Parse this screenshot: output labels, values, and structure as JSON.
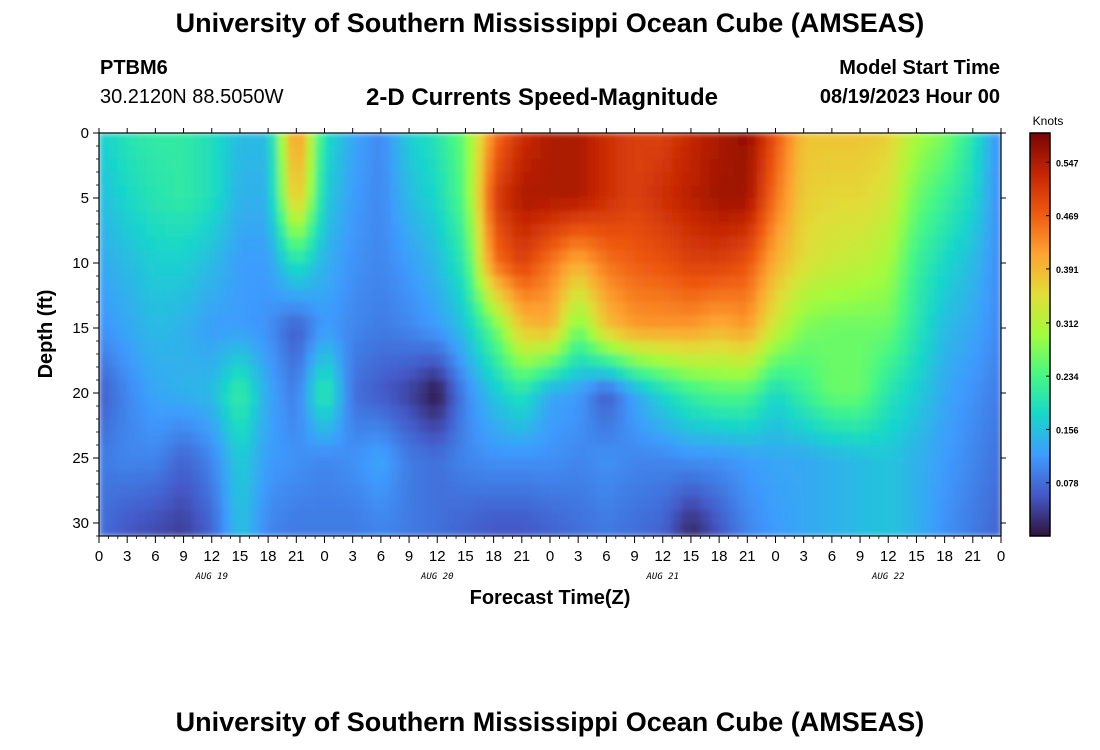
{
  "header": {
    "title": "University of Southern Mississippi Ocean Cube (AMSEAS)",
    "station_id": "PTBM6",
    "station_location": "30.2120N  88.5050W",
    "plot_title": "2-D Currents Speed-Magnitude",
    "model_start_label": "Model Start Time",
    "model_start_value": "08/19/2023 Hour 00"
  },
  "footer": {
    "title": "University of Southern Mississippi Ocean Cube (AMSEAS)"
  },
  "chart_data": {
    "type": "heatmap",
    "title": "2-D Currents Speed-Magnitude",
    "xlabel": "Forecast Time(Z)",
    "ylabel": "Depth (ft)",
    "x_tick_labels": [
      "0",
      "3",
      "6",
      "9",
      "12",
      "15",
      "18",
      "21",
      "0",
      "3",
      "6",
      "9",
      "12",
      "15",
      "18",
      "21",
      "0",
      "3",
      "6",
      "9",
      "12",
      "15",
      "18",
      "21",
      "0",
      "3",
      "6",
      "9",
      "12",
      "15",
      "18",
      "21",
      "0"
    ],
    "date_labels": [
      "AUG 19",
      "AUG 20",
      "AUG 21",
      "AUG 22"
    ],
    "x_hours_range": [
      0,
      96
    ],
    "y_ticks": [
      0,
      5,
      10,
      15,
      20,
      25,
      30
    ],
    "ylim": [
      0,
      31
    ],
    "y_inverted": true,
    "colorbar": {
      "unit": "Knots",
      "min": 0,
      "max": 0.59,
      "tick_values": [
        0.547,
        0.469,
        0.391,
        0.312,
        0.234,
        0.156,
        0.078
      ],
      "tick_labels": [
        "0.547",
        "0.469",
        "0.391",
        "0.312",
        "0.234",
        "0.156",
        "0.078"
      ],
      "colormap": [
        "#30123b",
        "#4458c7",
        "#3e9bfe",
        "#18d6cb",
        "#46f884",
        "#a2fc3c",
        "#e1dd37",
        "#fea331",
        "#ef5911",
        "#c42503",
        "#7a0403"
      ]
    },
    "depth_levels_ft": [
      0,
      5,
      10,
      15,
      20,
      25,
      30
    ],
    "hours": [
      0,
      3,
      6,
      9,
      12,
      15,
      18,
      21,
      24,
      27,
      30,
      33,
      36,
      39,
      42,
      45,
      48,
      51,
      54,
      57,
      60,
      63,
      66,
      69,
      72,
      75,
      78,
      81,
      84,
      87,
      90,
      93,
      96
    ],
    "speed_knots": [
      [
        0.17,
        0.2,
        0.21,
        0.21,
        0.19,
        0.15,
        0.15,
        0.45,
        0.19,
        0.13,
        0.1,
        0.17,
        0.2,
        0.26,
        0.45,
        0.52,
        0.55,
        0.55,
        0.52,
        0.5,
        0.5,
        0.53,
        0.55,
        0.57,
        0.48,
        0.38,
        0.38,
        0.38,
        0.37,
        0.3,
        0.27,
        0.2,
        0.1
      ],
      [
        0.15,
        0.18,
        0.2,
        0.21,
        0.19,
        0.14,
        0.14,
        0.4,
        0.17,
        0.12,
        0.1,
        0.15,
        0.18,
        0.25,
        0.5,
        0.55,
        0.55,
        0.55,
        0.52,
        0.5,
        0.52,
        0.54,
        0.56,
        0.56,
        0.45,
        0.37,
        0.36,
        0.36,
        0.34,
        0.26,
        0.22,
        0.18,
        0.1
      ],
      [
        0.13,
        0.15,
        0.17,
        0.17,
        0.15,
        0.12,
        0.12,
        0.2,
        0.14,
        0.11,
        0.1,
        0.12,
        0.15,
        0.21,
        0.45,
        0.5,
        0.45,
        0.4,
        0.45,
        0.47,
        0.48,
        0.5,
        0.5,
        0.48,
        0.4,
        0.35,
        0.33,
        0.32,
        0.3,
        0.22,
        0.18,
        0.15,
        0.1
      ],
      [
        0.11,
        0.13,
        0.15,
        0.14,
        0.12,
        0.12,
        0.11,
        0.06,
        0.12,
        0.1,
        0.09,
        0.1,
        0.12,
        0.16,
        0.25,
        0.38,
        0.4,
        0.26,
        0.38,
        0.42,
        0.42,
        0.42,
        0.4,
        0.42,
        0.33,
        0.27,
        0.26,
        0.26,
        0.26,
        0.2,
        0.15,
        0.13,
        0.1
      ],
      [
        0.06,
        0.1,
        0.13,
        0.14,
        0.15,
        0.22,
        0.13,
        0.09,
        0.22,
        0.08,
        0.06,
        0.04,
        0.0,
        0.1,
        0.16,
        0.2,
        0.13,
        0.12,
        0.06,
        0.13,
        0.18,
        0.22,
        0.24,
        0.24,
        0.18,
        0.22,
        0.26,
        0.26,
        0.2,
        0.17,
        0.13,
        0.11,
        0.09
      ],
      [
        0.09,
        0.1,
        0.1,
        0.07,
        0.1,
        0.17,
        0.12,
        0.11,
        0.1,
        0.11,
        0.13,
        0.09,
        0.08,
        0.1,
        0.11,
        0.11,
        0.11,
        0.1,
        0.11,
        0.1,
        0.1,
        0.11,
        0.11,
        0.12,
        0.13,
        0.13,
        0.14,
        0.15,
        0.16,
        0.14,
        0.12,
        0.1,
        0.08
      ],
      [
        0.08,
        0.06,
        0.05,
        0.04,
        0.07,
        0.16,
        0.1,
        0.09,
        0.09,
        0.09,
        0.1,
        0.09,
        0.08,
        0.07,
        0.06,
        0.06,
        0.07,
        0.08,
        0.09,
        0.08,
        0.07,
        0.02,
        0.06,
        0.1,
        0.12,
        0.13,
        0.14,
        0.15,
        0.16,
        0.14,
        0.11,
        0.09,
        0.07
      ]
    ]
  },
  "colors": {
    "axis": "#000000",
    "background": "#ffffff"
  }
}
